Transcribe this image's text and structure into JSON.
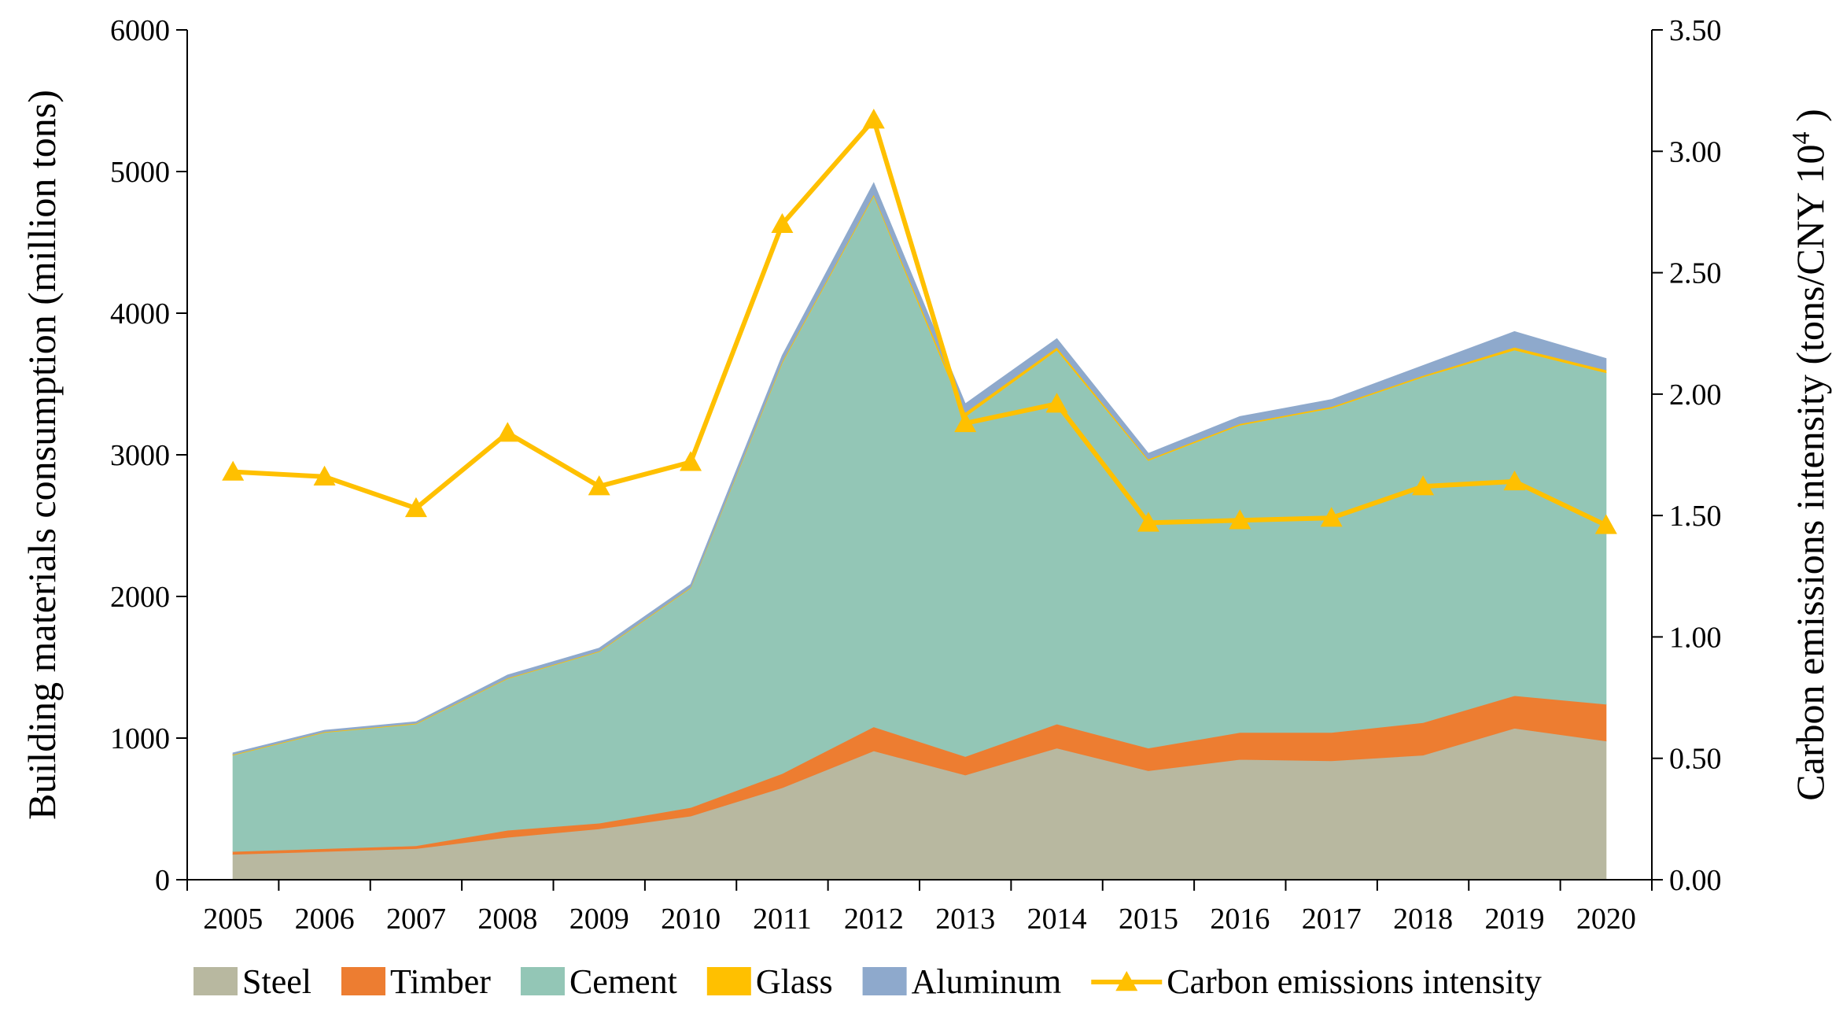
{
  "chart_data": {
    "type": "area",
    "categories": [
      "2005",
      "2006",
      "2007",
      "2008",
      "2009",
      "2010",
      "2011",
      "2012",
      "2013",
      "2014",
      "2015",
      "2016",
      "2017",
      "2018",
      "2019",
      "2020"
    ],
    "series": [
      {
        "name": "Steel",
        "axis": "left",
        "color": "#b8b8a0",
        "values": [
          180,
          200,
          220,
          300,
          360,
          450,
          650,
          910,
          740,
          930,
          770,
          850,
          840,
          880,
          1070,
          980
        ]
      },
      {
        "name": "Timber",
        "axis": "left",
        "color": "#ed7d31",
        "values": [
          20,
          20,
          20,
          50,
          40,
          60,
          100,
          170,
          130,
          170,
          160,
          190,
          200,
          230,
          230,
          260
        ]
      },
      {
        "name": "Cement",
        "axis": "left",
        "color": "#93c6b6",
        "values": [
          680,
          820,
          860,
          1070,
          1210,
          1550,
          2900,
          3750,
          2400,
          2640,
          2030,
          2170,
          2290,
          2440,
          2440,
          2340
        ]
      },
      {
        "name": "Glass",
        "axis": "left",
        "color": "#ffc000",
        "values": [
          5,
          5,
          5,
          5,
          5,
          5,
          10,
          10,
          30,
          20,
          10,
          10,
          10,
          10,
          20,
          20
        ]
      },
      {
        "name": "Aluminum",
        "axis": "left",
        "color": "#8ea9cc",
        "values": [
          10,
          10,
          10,
          20,
          20,
          20,
          40,
          80,
          60,
          60,
          40,
          50,
          50,
          70,
          110,
          80
        ]
      },
      {
        "name": "Carbon emissions intensity",
        "axis": "right",
        "type": "line",
        "color": "#ffc000",
        "values": [
          1.68,
          1.66,
          1.53,
          1.84,
          1.62,
          1.72,
          2.7,
          3.13,
          1.88,
          1.96,
          1.47,
          1.48,
          1.49,
          1.62,
          1.64,
          1.46
        ]
      }
    ],
    "y_left": {
      "label": "Building materials consumption (million tons)",
      "ylim": [
        0,
        6000
      ],
      "ticks": [
        "0",
        "1000",
        "2000",
        "3000",
        "4000",
        "5000",
        "6000"
      ]
    },
    "y_right": {
      "label_prefix": "Carbon emissions intensity (tons/CNY 10",
      "label_sup": "4",
      "label_suffix": " )",
      "ylim": [
        0,
        3.5
      ],
      "ticks": [
        "0.00",
        "0.50",
        "1.00",
        "1.50",
        "2.00",
        "2.50",
        "3.00",
        "3.50"
      ]
    },
    "legend": {
      "placement": "bottom",
      "items": [
        "Steel",
        "Timber",
        "Cement",
        "Glass",
        "Aluminum",
        "Carbon emissions intensity"
      ]
    },
    "grid": false
  }
}
